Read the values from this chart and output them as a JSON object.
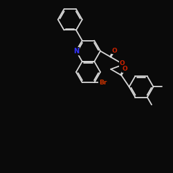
{
  "bg_color": "#0a0a0a",
  "bond_color": "#d8d8d8",
  "N_color": "#3333ff",
  "O_color": "#cc2200",
  "Br_color": "#cc3300",
  "bond_lw": 1.3,
  "figsize": [
    2.5,
    2.5
  ],
  "dpi": 100,
  "xlim": [
    0,
    10
  ],
  "ylim": [
    0,
    10
  ]
}
